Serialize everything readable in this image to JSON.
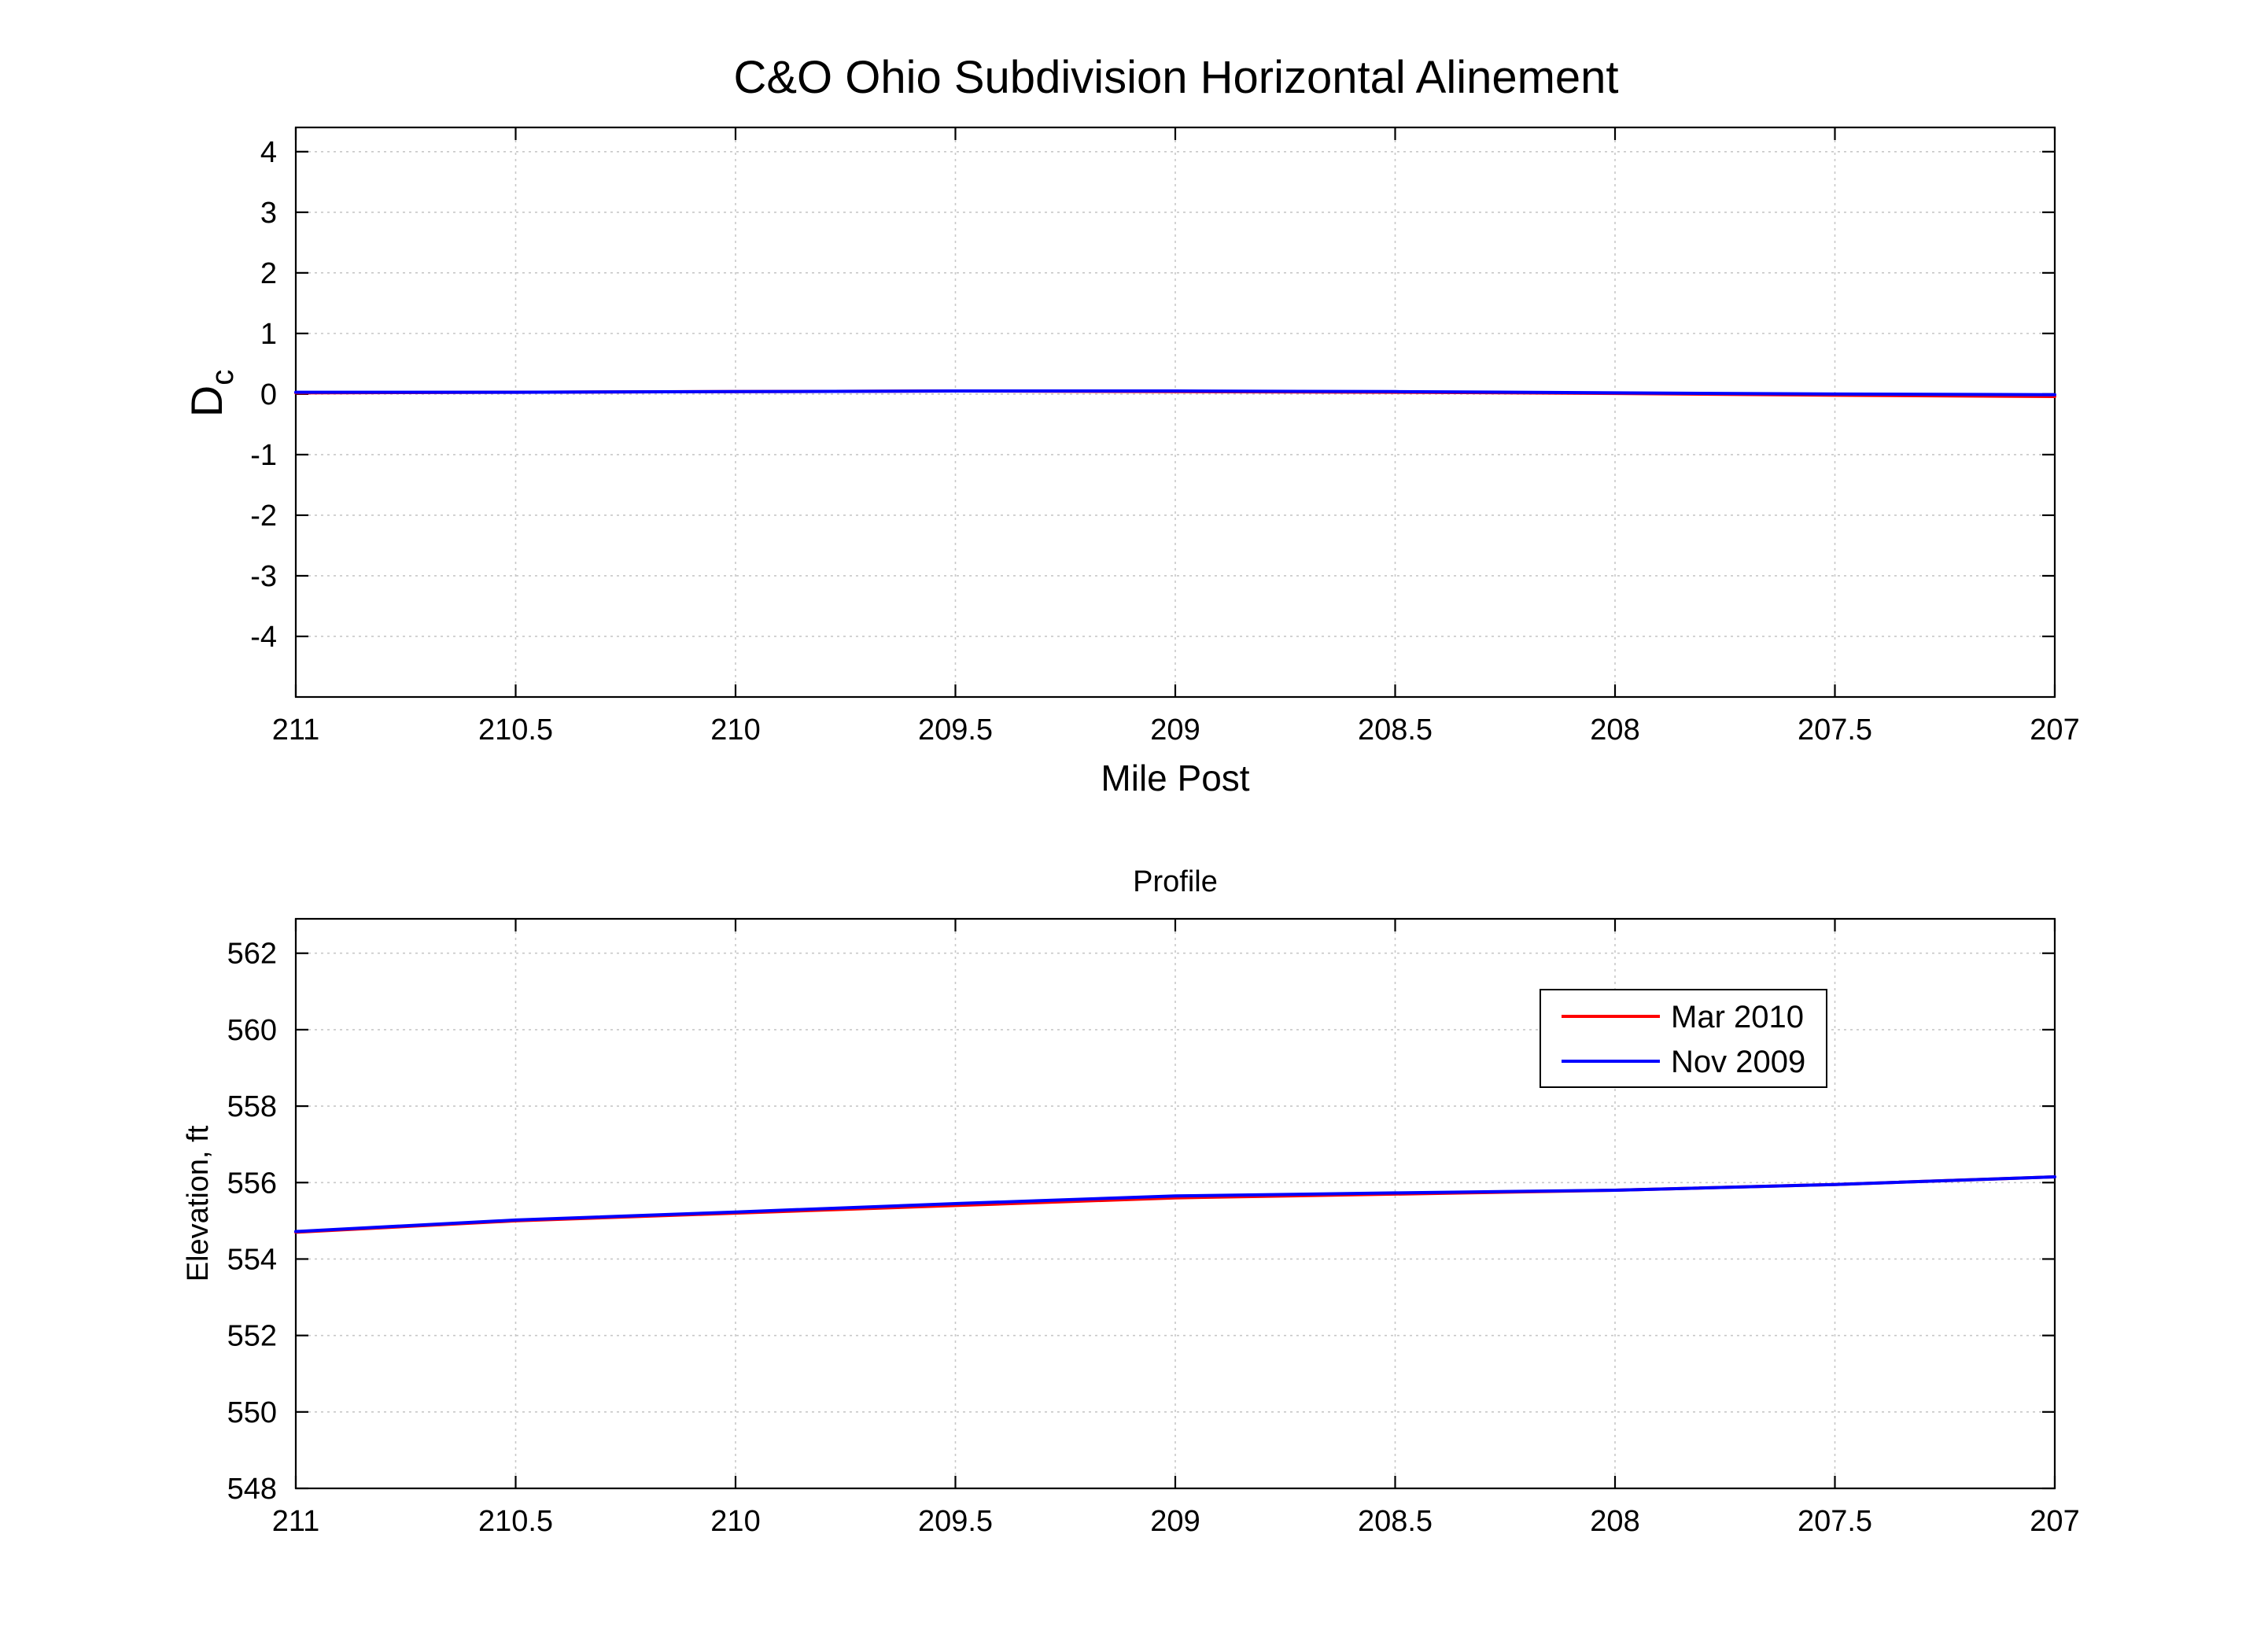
{
  "chart_data": [
    {
      "type": "line",
      "title": "C&O Ohio Subdivision Horizontal Alinement",
      "xlabel": "Mile Post",
      "ylabel": "D",
      "ylabel_subscript": "c",
      "xlim": [
        207,
        211
      ],
      "x_reversed": true,
      "ylim": [
        -5,
        4.4
      ],
      "xticks": [
        211,
        210.5,
        210,
        209.5,
        209,
        208.5,
        208,
        207.5,
        207
      ],
      "yticks": [
        4,
        3,
        2,
        1,
        0,
        -1,
        -2,
        -3,
        -4
      ],
      "grid": true,
      "series": [
        {
          "name": "Mar 2010",
          "color": "#ff0000",
          "x": [
            211,
            210.5,
            210,
            209.5,
            209,
            208.5,
            208,
            207.5,
            207
          ],
          "y": [
            0.02,
            0.03,
            0.04,
            0.05,
            0.04,
            0.03,
            0.01,
            -0.02,
            -0.04
          ]
        },
        {
          "name": "Nov 2009",
          "color": "#0000ff",
          "x": [
            211,
            210.5,
            210,
            209.5,
            209,
            208.5,
            208,
            207.5,
            207
          ],
          "y": [
            0.03,
            0.03,
            0.04,
            0.05,
            0.05,
            0.04,
            0.02,
            0.0,
            -0.01
          ]
        }
      ]
    },
    {
      "type": "line",
      "title": "Profile",
      "xlabel": "",
      "ylabel": "Elevation, ft",
      "xlim": [
        207,
        211
      ],
      "x_reversed": true,
      "ylim": [
        548,
        562.9
      ],
      "xticks": [
        211,
        210.5,
        210,
        209.5,
        209,
        208.5,
        208,
        207.5,
        207
      ],
      "yticks": [
        562,
        560,
        558,
        556,
        554,
        552,
        550,
        548
      ],
      "grid": true,
      "legend": "top-right",
      "series": [
        {
          "name": "Mar 2010",
          "color": "#ff0000",
          "x": [
            211,
            210.5,
            210,
            209.5,
            209,
            208.5,
            208,
            207.5,
            207
          ],
          "y": [
            554.7,
            555.0,
            555.2,
            555.4,
            555.6,
            555.7,
            555.8,
            555.95,
            556.15
          ]
        },
        {
          "name": "Nov 2009",
          "color": "#0000ff",
          "x": [
            211,
            210.5,
            210,
            209.5,
            209,
            208.5,
            208,
            207.5,
            207
          ],
          "y": [
            554.72,
            555.02,
            555.23,
            555.45,
            555.65,
            555.73,
            555.8,
            555.95,
            556.15
          ]
        }
      ]
    }
  ]
}
